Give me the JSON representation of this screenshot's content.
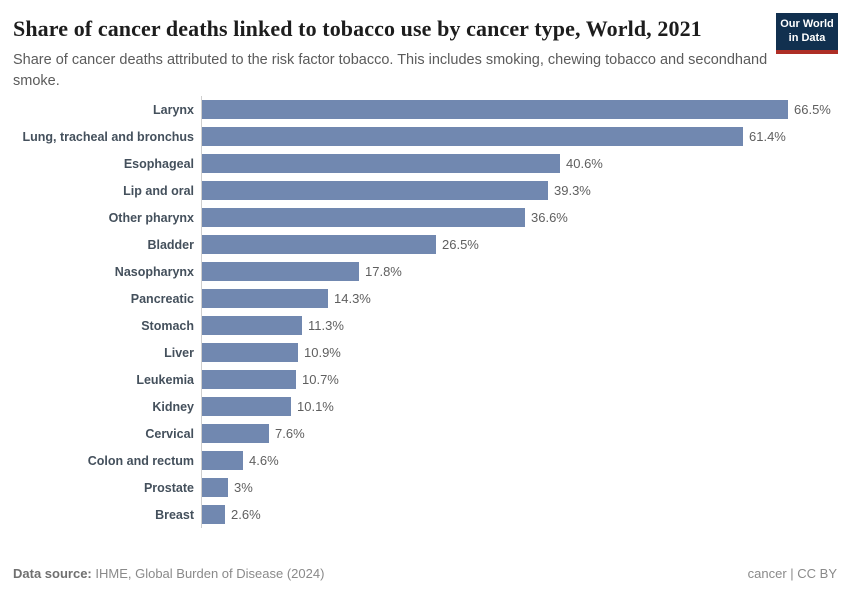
{
  "header": {
    "title": "Share of cancer deaths linked to tobacco use by cancer type, World, 2021",
    "subtitle": "Share of cancer deaths attributed to the risk factor tobacco. This includes smoking, chewing tobacco and secondhand smoke.",
    "logo": {
      "line1": "Our World",
      "line2": "in Data"
    }
  },
  "chart_data": {
    "type": "bar",
    "orientation": "horizontal",
    "title": "Share of cancer deaths linked to tobacco use by cancer type, World, 2021",
    "categories": [
      "Larynx",
      "Lung, tracheal and bronchus",
      "Esophageal",
      "Lip and oral",
      "Other pharynx",
      "Bladder",
      "Nasopharynx",
      "Pancreatic",
      "Stomach",
      "Liver",
      "Leukemia",
      "Kidney",
      "Cervical",
      "Colon and rectum",
      "Prostate",
      "Breast"
    ],
    "values": [
      66.5,
      61.4,
      40.6,
      39.3,
      36.6,
      26.5,
      17.8,
      14.3,
      11.3,
      10.9,
      10.7,
      10.1,
      7.6,
      4.6,
      3,
      2.6
    ],
    "value_labels": [
      "66.5%",
      "61.4%",
      "40.6%",
      "39.3%",
      "36.6%",
      "26.5%",
      "17.8%",
      "14.3%",
      "11.3%",
      "10.9%",
      "10.7%",
      "10.1%",
      "7.6%",
      "4.6%",
      "3%",
      "2.6%"
    ],
    "xlabel": "",
    "ylabel": "",
    "xlim": [
      0,
      66.5
    ],
    "grid": false,
    "legend": "none",
    "bar_color": "#7188b0",
    "axis_line_color": "#cfcfcf"
  },
  "footer": {
    "datasource_label": "Data source:",
    "datasource_value": " IHME, Global Burden of Disease (2024)",
    "right": "cancer | CC BY"
  },
  "colors": {
    "bar": "#7188b0",
    "title": "#1d1d1d",
    "subtitle": "#5b5b5b",
    "logo_navy": "#11304f",
    "logo_red": "#ae2e26"
  }
}
